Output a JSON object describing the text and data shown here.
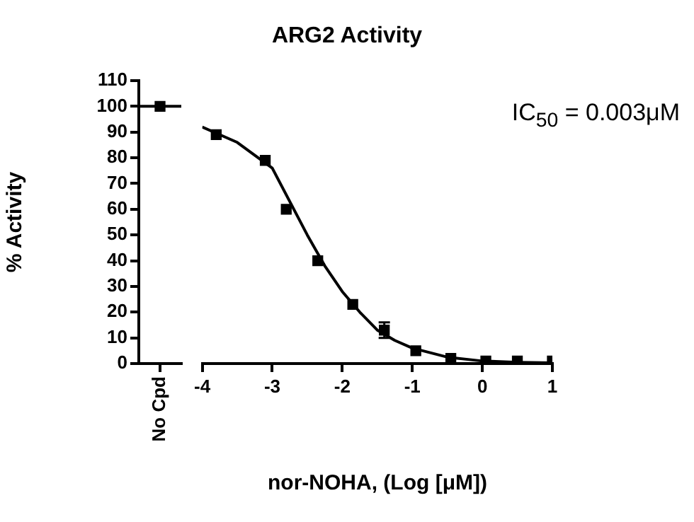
{
  "chart_data": [
    {
      "type": "scatter",
      "ylabel": "% Activity",
      "categories": [
        "No Cpd"
      ],
      "ylim": [
        0,
        110
      ],
      "yticks": [
        0,
        10,
        20,
        30,
        40,
        50,
        60,
        70,
        80,
        90,
        100,
        110
      ],
      "grid": false,
      "legend": false,
      "marker": "square",
      "series": [
        {
          "color": "#000000",
          "values": [
            100
          ]
        }
      ],
      "ref_lines": [
        {
          "axis": "y",
          "value": 100,
          "color": "#000000"
        }
      ]
    },
    {
      "type": "scatter",
      "title": "ARG2 Activity",
      "xlabel": "nor-NOHA, (Log [μM])",
      "annotations": [
        "IC$_{50}$ = 0.003μM"
      ],
      "xlim": [
        -4,
        1
      ],
      "xticks": [
        -4,
        -3,
        -2,
        -1,
        0,
        1
      ],
      "ylim": [
        0,
        110
      ],
      "tick_labels": "x",
      "grid": false,
      "legend": false,
      "marker": "square",
      "series": [
        {
          "color": "#000000",
          "x": [
            -3.8,
            -3.1,
            -2.8,
            -2.35,
            -1.85,
            -1.4,
            -0.95,
            -0.45,
            0.05,
            0.5,
            1.0
          ],
          "values": [
            89,
            79,
            60,
            40,
            23,
            13,
            5,
            2,
            1,
            1,
            1
          ],
          "errors": [
            null,
            null,
            null,
            null,
            null,
            3,
            null,
            null,
            null,
            null,
            null
          ]
        },
        {
          "type": "line",
          "color": "#000000",
          "marker": "none",
          "line_style": "solid",
          "x": [
            -4,
            -3.5,
            -3,
            -2.75,
            -2.5,
            -2.25,
            -2,
            -1.75,
            -1.5,
            -1.25,
            -1,
            -0.5,
            0,
            0.5,
            1
          ],
          "values": [
            92,
            86,
            76,
            63,
            50,
            38,
            28,
            20,
            13,
            9,
            6,
            2.5,
            1,
            0.5,
            0.3
          ]
        }
      ]
    }
  ]
}
